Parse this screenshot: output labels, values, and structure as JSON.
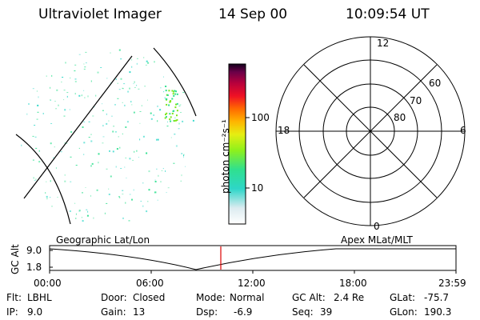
{
  "header": {
    "title": "Ultraviolet Imager",
    "date": "14 Sep 00",
    "time": "10:09:54 UT"
  },
  "colorbar": {
    "unit_label": "photon cm⁻²s⁻¹",
    "tick_100": "100",
    "tick_10": "10"
  },
  "polar_plot": {
    "mlt_labels": {
      "top": "12",
      "left": "18",
      "right": "6",
      "bottom": "0"
    },
    "lat_labels": [
      "60",
      "70",
      "80"
    ]
  },
  "altitude_panel": {
    "left_caption": "Geographic Lat/Lon",
    "right_caption": "Apex MLat/MLT",
    "ylabel": "GC Alt",
    "y_ticks": [
      "9.0",
      "1.8"
    ],
    "x_ticks": [
      "00:00",
      "06:00",
      "12:00",
      "18:00",
      "23:59"
    ]
  },
  "footer": {
    "row1": [
      {
        "label": "Flt:",
        "value": "LBHL"
      },
      {
        "label": "Door:",
        "value": "Closed"
      },
      {
        "label": "Mode:",
        "value": "Normal"
      },
      {
        "label": "GC Alt:",
        "value": "2.4 Re"
      },
      {
        "label": "GLat:",
        "value": "-75.7"
      }
    ],
    "row2": [
      {
        "label": "IP:",
        "value": "9.0"
      },
      {
        "label": "Gain:",
        "value": "13"
      },
      {
        "label": "Dsp:",
        "value": "-6.9"
      },
      {
        "label": "Seq:",
        "value": "39"
      },
      {
        "label": "GLon:",
        "value": "190.3"
      }
    ]
  },
  "colors": {
    "background": "#ffffff",
    "marker_line": "#dd0000",
    "speckle_main": "#2fe08f",
    "speckle_alt": "#26d6c6"
  }
}
